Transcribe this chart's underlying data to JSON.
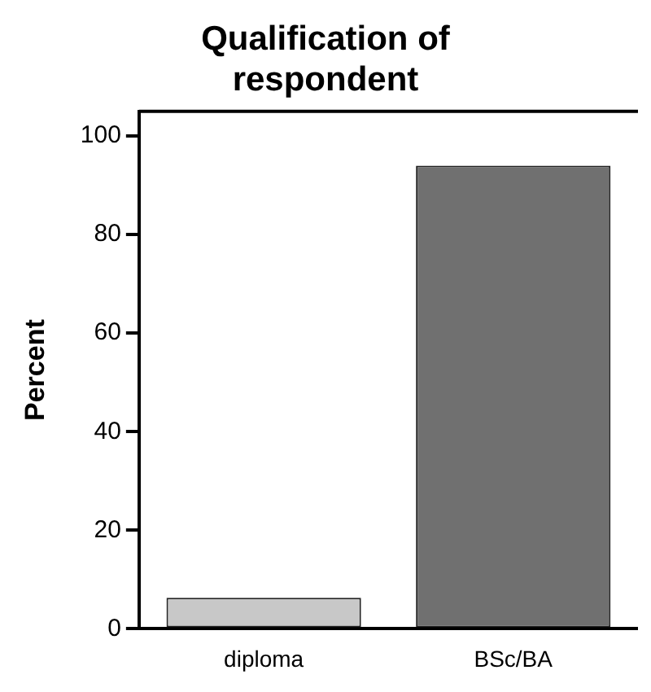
{
  "chart_data": {
    "type": "bar",
    "title": "Qualification of respondent",
    "ylabel": "Percent",
    "categories": [
      "diploma",
      "BSc/BA"
    ],
    "values": [
      6.3,
      94
    ],
    "colors": [
      "#c8c8c8",
      "#707070"
    ],
    "ylim": [
      0,
      105
    ],
    "yticks": [
      0,
      20,
      40,
      60,
      80,
      100
    ],
    "grid": false
  }
}
